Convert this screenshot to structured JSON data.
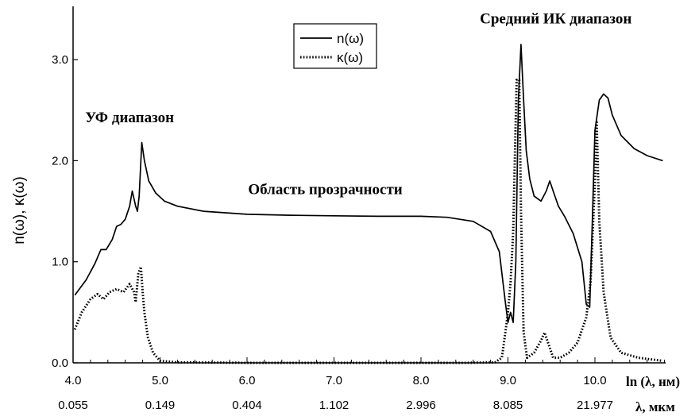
{
  "chart_data": {
    "type": "line",
    "title": "",
    "xlabel": "ln (λ, нм)",
    "xlabel2": "λ, мкм",
    "ylabel": "n(ω), κ(ω)",
    "xlim": [
      4.0,
      10.8
    ],
    "ylim": [
      0.0,
      3.5
    ],
    "x_ticks": [
      "4.0",
      "5.0",
      "6.0",
      "7.0",
      "8.0",
      "9.0",
      "10.0"
    ],
    "x_tick_values": [
      4,
      5,
      6,
      7,
      8,
      9,
      10
    ],
    "x2_ticks": [
      "0.055",
      "0.149",
      "0.404",
      "1.102",
      "2.996",
      "8.085",
      "21.977"
    ],
    "y_ticks": [
      "0.0",
      "1.0",
      "2.0",
      "3.0"
    ],
    "y_tick_values": [
      0,
      1,
      2,
      3
    ],
    "legend": [
      {
        "label": "n(ω)",
        "style": "solid"
      },
      {
        "label": "κ(ω)",
        "style": "dotted"
      }
    ],
    "annotations": [
      {
        "text": "УФ диапазон",
        "x": 4.65,
        "y": 2.38
      },
      {
        "text": "Область прозрачности",
        "x": 6.9,
        "y": 1.67
      },
      {
        "text": "Средний ИК диапазон",
        "x": 9.55,
        "y": 3.36
      }
    ],
    "series": [
      {
        "name": "n(ω)",
        "style": "solid",
        "x": [
          4.02,
          4.15,
          4.25,
          4.32,
          4.38,
          4.45,
          4.5,
          4.55,
          4.6,
          4.65,
          4.68,
          4.72,
          4.74,
          4.76,
          4.79,
          4.82,
          4.87,
          4.95,
          5.05,
          5.2,
          5.5,
          6.0,
          6.5,
          7.0,
          7.5,
          8.0,
          8.3,
          8.6,
          8.8,
          8.9,
          8.97,
          9.0,
          9.03,
          9.06,
          9.09,
          9.12,
          9.15,
          9.18,
          9.21,
          9.25,
          9.3,
          9.38,
          9.44,
          9.48,
          9.52,
          9.58,
          9.65,
          9.75,
          9.85,
          9.9,
          9.94,
          9.97,
          10.0,
          10.05,
          10.1,
          10.15,
          10.2,
          10.3,
          10.45,
          10.6,
          10.78
        ],
        "y": [
          0.67,
          0.82,
          0.98,
          1.12,
          1.12,
          1.22,
          1.35,
          1.37,
          1.42,
          1.55,
          1.7,
          1.55,
          1.5,
          1.65,
          2.18,
          2.0,
          1.8,
          1.68,
          1.6,
          1.55,
          1.5,
          1.47,
          1.46,
          1.455,
          1.45,
          1.45,
          1.44,
          1.4,
          1.3,
          1.1,
          0.6,
          0.4,
          0.5,
          0.4,
          1.0,
          2.6,
          3.15,
          2.6,
          2.1,
          1.82,
          1.65,
          1.6,
          1.7,
          1.8,
          1.7,
          1.55,
          1.45,
          1.28,
          1.0,
          0.58,
          0.55,
          1.4,
          2.3,
          2.6,
          2.66,
          2.62,
          2.45,
          2.25,
          2.12,
          2.05,
          2.0
        ]
      },
      {
        "name": "κ(ω)",
        "style": "dotted",
        "x": [
          4.02,
          4.1,
          4.2,
          4.28,
          4.35,
          4.42,
          4.5,
          4.58,
          4.65,
          4.7,
          4.72,
          4.75,
          4.78,
          4.8,
          4.82,
          4.86,
          4.92,
          5.0,
          5.2,
          6.0,
          7.0,
          8.0,
          8.5,
          8.85,
          8.93,
          8.97,
          9.0,
          9.03,
          9.06,
          9.1,
          9.13,
          9.15,
          9.18,
          9.22,
          9.3,
          9.38,
          9.42,
          9.46,
          9.52,
          9.6,
          9.7,
          9.8,
          9.9,
          9.95,
          10.0,
          10.02,
          10.05,
          10.1,
          10.18,
          10.3,
          10.5,
          10.78
        ],
        "y": [
          0.33,
          0.5,
          0.63,
          0.68,
          0.63,
          0.7,
          0.73,
          0.7,
          0.78,
          0.7,
          0.6,
          0.88,
          0.95,
          0.7,
          0.5,
          0.25,
          0.1,
          0.02,
          0.005,
          0.0,
          0.0,
          0.0,
          0.0,
          0.005,
          0.05,
          0.3,
          0.5,
          0.8,
          1.3,
          2.8,
          2.8,
          1.5,
          0.3,
          0.05,
          0.1,
          0.22,
          0.3,
          0.2,
          0.05,
          0.05,
          0.1,
          0.2,
          0.45,
          0.8,
          1.8,
          2.38,
          1.4,
          0.7,
          0.25,
          0.1,
          0.05,
          0.02
        ]
      }
    ]
  }
}
